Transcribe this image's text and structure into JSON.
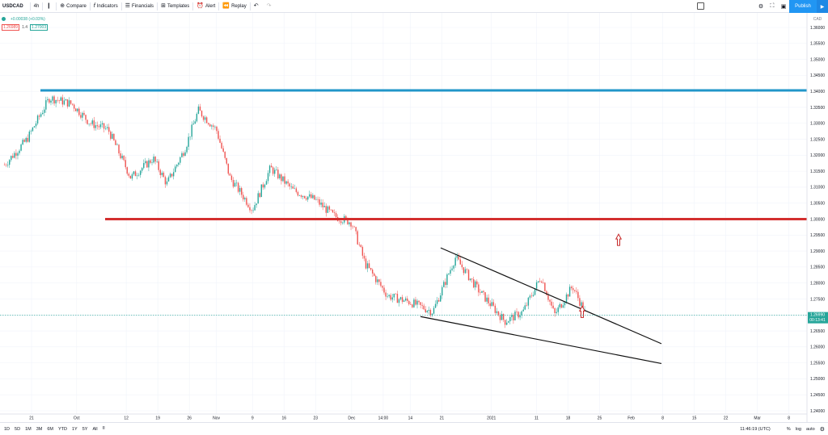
{
  "toolbar": {
    "symbol": "USDCAD",
    "interval": "4h",
    "items": [
      {
        "name": "compare",
        "icon": "plus-circle-icon",
        "label": "Compare"
      },
      {
        "name": "indicators",
        "icon": "fx-icon",
        "label": "Indicators"
      },
      {
        "name": "financials",
        "icon": "financials-icon",
        "label": "Financials"
      },
      {
        "name": "templates",
        "icon": "templates-icon",
        "label": "Templates"
      },
      {
        "name": "alert",
        "icon": "alarm-clock-icon",
        "label": "Alert"
      },
      {
        "name": "replay",
        "icon": "rewind-icon",
        "label": "Replay"
      }
    ],
    "publish_label": "Publish"
  },
  "legend": {
    "change": "+0.00038 (+0.03%)",
    "bid": "1.26989",
    "spread": "1.4",
    "ask": "1.27003"
  },
  "price_axis": {
    "currency": "CAD",
    "ticks": [
      "1.36000",
      "1.35500",
      "1.35000",
      "1.34500",
      "1.34000",
      "1.33500",
      "1.33000",
      "1.32500",
      "1.32000",
      "1.31500",
      "1.31000",
      "1.30500",
      "1.30000",
      "1.29500",
      "1.29000",
      "1.28500",
      "1.28000",
      "1.27500",
      "1.27000",
      "1.26500",
      "1.26000",
      "1.25500",
      "1.25000",
      "1.24500",
      "1.24000"
    ],
    "last_price": "1.26990",
    "countdown": "00:13:41"
  },
  "time_axis": {
    "ticks": [
      "21",
      "Oct",
      "12",
      "19",
      "26",
      "Nov",
      "9",
      "16",
      "23",
      "Dec",
      "14:00",
      "14",
      "21",
      "2021",
      "11",
      "18",
      "25",
      "Feb",
      "8",
      "15",
      "22",
      "Mar",
      "8"
    ]
  },
  "bottombar": {
    "ranges": [
      "1D",
      "5D",
      "1M",
      "3M",
      "6M",
      "YTD",
      "1Y",
      "5Y",
      "All"
    ],
    "clock": "11:46:19 (UTC)",
    "percent": "%",
    "log": "log",
    "auto": "auto"
  },
  "colors": {
    "up": "#26a69a",
    "down": "#ef5350",
    "resistance": "#2196c9",
    "support": "#d32f2f",
    "arrow": "#c62828"
  },
  "chart_data": {
    "type": "candlestick",
    "symbol": "USDCAD",
    "interval": "4h",
    "ylim": [
      1.24,
      1.36
    ],
    "close_path": [
      {
        "x": "2020-09-15",
        "y": 1.317
      },
      {
        "x": "2020-09-20",
        "y": 1.325
      },
      {
        "x": "2020-09-25",
        "y": 1.338
      },
      {
        "x": "2020-09-30",
        "y": 1.336
      },
      {
        "x": "2020-10-04",
        "y": 1.33
      },
      {
        "x": "2020-10-08",
        "y": 1.328
      },
      {
        "x": "2020-10-13",
        "y": 1.313
      },
      {
        "x": "2020-10-18",
        "y": 1.319
      },
      {
        "x": "2020-10-21",
        "y": 1.311
      },
      {
        "x": "2020-10-25",
        "y": 1.322
      },
      {
        "x": "2020-10-28",
        "y": 1.334
      },
      {
        "x": "2020-11-01",
        "y": 1.328
      },
      {
        "x": "2020-11-04",
        "y": 1.313
      },
      {
        "x": "2020-11-09",
        "y": 1.303
      },
      {
        "x": "2020-11-13",
        "y": 1.316
      },
      {
        "x": "2020-11-18",
        "y": 1.309
      },
      {
        "x": "2020-11-23",
        "y": 1.306
      },
      {
        "x": "2020-11-27",
        "y": 1.301
      },
      {
        "x": "2020-12-01",
        "y": 1.299
      },
      {
        "x": "2020-12-04",
        "y": 1.286
      },
      {
        "x": "2020-12-09",
        "y": 1.276
      },
      {
        "x": "2020-12-14",
        "y": 1.274
      },
      {
        "x": "2020-12-19",
        "y": 1.271
      },
      {
        "x": "2020-12-24",
        "y": 1.288
      },
      {
        "x": "2020-12-29",
        "y": 1.278
      },
      {
        "x": "2021-01-04",
        "y": 1.268
      },
      {
        "x": "2021-01-08",
        "y": 1.271
      },
      {
        "x": "2021-01-12",
        "y": 1.282
      },
      {
        "x": "2021-01-15",
        "y": 1.27
      },
      {
        "x": "2021-01-19",
        "y": 1.279
      },
      {
        "x": "2021-01-22",
        "y": 1.27
      }
    ]
  }
}
